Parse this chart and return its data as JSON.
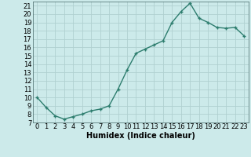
{
  "x": [
    0,
    1,
    2,
    3,
    4,
    5,
    6,
    7,
    8,
    9,
    10,
    11,
    12,
    13,
    14,
    15,
    16,
    17,
    18,
    19,
    20,
    21,
    22,
    23
  ],
  "y": [
    10,
    8.8,
    7.8,
    7.4,
    7.7,
    8.0,
    8.4,
    8.6,
    9.0,
    11.0,
    13.3,
    15.3,
    15.8,
    16.3,
    16.8,
    19.0,
    20.3,
    21.3,
    19.5,
    19.0,
    18.4,
    18.3,
    18.4,
    17.4
  ],
  "line_color": "#2d7d6e",
  "marker": "+",
  "marker_size": 3.5,
  "marker_edge_width": 1.0,
  "line_width": 1.0,
  "bg_color": "#cceaea",
  "grid_color": "#b0d0d0",
  "xlabel": "Humidex (Indice chaleur)",
  "xlim": [
    -0.5,
    23.5
  ],
  "ylim": [
    7,
    21.5
  ],
  "yticks": [
    7,
    8,
    9,
    10,
    11,
    12,
    13,
    14,
    15,
    16,
    17,
    18,
    19,
    20,
    21
  ],
  "xtick_labels": [
    "0",
    "1",
    "2",
    "3",
    "4",
    "5",
    "6",
    "7",
    "8",
    "9",
    "10",
    "11",
    "12",
    "13",
    "14",
    "15",
    "16",
    "17",
    "18",
    "19",
    "20",
    "21",
    "22",
    "23"
  ],
  "tick_fontsize": 6,
  "xlabel_fontsize": 7,
  "xlabel_fontweight": "bold"
}
